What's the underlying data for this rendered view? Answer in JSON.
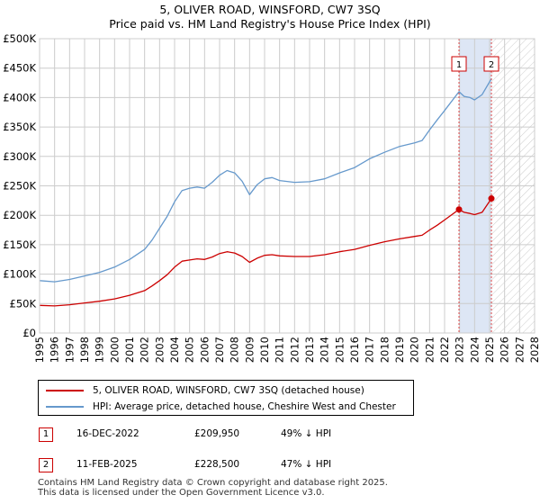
{
  "title": {
    "line1": "5, OLIVER ROAD, WINSFORD, CW7 3SQ",
    "line2": "Price paid vs. HM Land Registry's House Price Index (HPI)"
  },
  "colors": {
    "property": "#cc0000",
    "hpi": "#6699cc",
    "grid": "#cccccc",
    "shade": "#dde6f5",
    "hatch": "#c8c8c8",
    "marker_line": "#dd4444"
  },
  "chart_data": {
    "type": "line",
    "title": "5, OLIVER ROAD, WINSFORD, CW7 3SQ — Price paid vs. HM Land Registry's House Price Index (HPI)",
    "xlabel": "",
    "ylabel": "",
    "xlim": [
      1995,
      2028
    ],
    "ylim": [
      0,
      500000
    ],
    "y_ticks": [
      0,
      50000,
      100000,
      150000,
      200000,
      250000,
      300000,
      350000,
      400000,
      450000,
      500000
    ],
    "y_tick_labels": [
      "£0",
      "£50K",
      "£100K",
      "£150K",
      "£200K",
      "£250K",
      "£300K",
      "£350K",
      "£400K",
      "£450K",
      "£500K"
    ],
    "x_ticks": [
      "1995",
      "1996",
      "1997",
      "1998",
      "1999",
      "2000",
      "2001",
      "2002",
      "2003",
      "2004",
      "2005",
      "2006",
      "2007",
      "2008",
      "2009",
      "2010",
      "2011",
      "2012",
      "2013",
      "2014",
      "2015",
      "2016",
      "2017",
      "2018",
      "2019",
      "2020",
      "2021",
      "2022",
      "2023",
      "2024",
      "2025",
      "2026",
      "2027",
      "2028"
    ],
    "grid": true,
    "series": [
      {
        "name": "5, OLIVER ROAD, WINSFORD, CW7 3SQ (detached house)",
        "color": "#cc0000",
        "x": [
          1995.0,
          1996.0,
          1997.0,
          1998.0,
          1999.0,
          2000.0,
          2001.0,
          2002.0,
          2002.5,
          2003.0,
          2003.5,
          2004.0,
          2004.5,
          2005.0,
          2005.5,
          2006.0,
          2006.5,
          2007.0,
          2007.5,
          2008.0,
          2008.5,
          2009.0,
          2009.5,
          2010.0,
          2010.5,
          2011.0,
          2012.0,
          2013.0,
          2014.0,
          2015.0,
          2016.0,
          2017.0,
          2018.0,
          2019.0,
          2020.0,
          2020.5,
          2021.0,
          2021.5,
          2022.0,
          2022.96,
          2023.3,
          2023.7,
          2024.0,
          2024.5,
          2025.12
        ],
        "values": [
          47000,
          46000,
          48000,
          51000,
          54000,
          58000,
          64000,
          72000,
          80000,
          89000,
          99000,
          112000,
          122000,
          124000,
          126000,
          125000,
          129000,
          135000,
          138000,
          136000,
          130000,
          120000,
          127000,
          132000,
          133000,
          131000,
          130000,
          130000,
          133000,
          138000,
          142000,
          149000,
          155000,
          160000,
          164000,
          166000,
          175000,
          183000,
          192000,
          209950,
          205000,
          203000,
          201000,
          205000,
          228500
        ]
      },
      {
        "name": "HPI: Average price, detached house, Cheshire West and Chester",
        "color": "#6699cc",
        "x": [
          1995.0,
          1996.0,
          1997.0,
          1998.0,
          1999.0,
          2000.0,
          2001.0,
          2002.0,
          2002.5,
          2003.0,
          2003.5,
          2004.0,
          2004.5,
          2005.0,
          2005.5,
          2006.0,
          2006.5,
          2007.0,
          2007.5,
          2008.0,
          2008.5,
          2009.0,
          2009.5,
          2010.0,
          2010.5,
          2011.0,
          2012.0,
          2013.0,
          2014.0,
          2015.0,
          2016.0,
          2017.0,
          2018.0,
          2019.0,
          2020.0,
          2020.5,
          2021.0,
          2021.5,
          2022.0,
          2022.96,
          2023.3,
          2023.7,
          2024.0,
          2024.5,
          2025.12
        ],
        "values": [
          89000,
          87000,
          91000,
          97000,
          103000,
          112000,
          125000,
          142000,
          158000,
          178000,
          198000,
          223000,
          242000,
          246000,
          248000,
          246000,
          256000,
          268000,
          276000,
          272000,
          258000,
          235000,
          252000,
          262000,
          264000,
          259000,
          256000,
          257000,
          262000,
          272000,
          281000,
          296000,
          307000,
          317000,
          323000,
          327000,
          345000,
          362000,
          378000,
          410000,
          402000,
          400000,
          396000,
          405000,
          432000
        ]
      }
    ],
    "sales": [
      {
        "label": "1",
        "x": 2022.96,
        "value": 209950
      },
      {
        "label": "2",
        "x": 2025.12,
        "value": 228500
      }
    ],
    "shaded_range": [
      2022.96,
      2025.12
    ],
    "hatched_from": 2025.12,
    "legend_position": "below"
  },
  "legend": {
    "property_label": "5, OLIVER ROAD, WINSFORD, CW7 3SQ (detached house)",
    "hpi_label": "HPI: Average price, detached house, Cheshire West and Chester"
  },
  "transactions": [
    {
      "num": "1",
      "date": "16-DEC-2022",
      "price": "£209,950",
      "pct": "49% ↓ HPI"
    },
    {
      "num": "2",
      "date": "11-FEB-2025",
      "price": "£228,500",
      "pct": "47% ↓ HPI"
    }
  ],
  "footer": {
    "line1": "Contains HM Land Registry data © Crown copyright and database right 2025.",
    "line2": "This data is licensed under the Open Government Licence v3.0."
  }
}
